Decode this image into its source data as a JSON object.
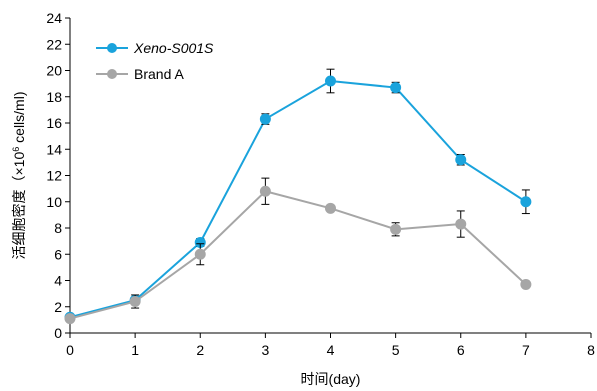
{
  "chart_data": {
    "type": "line",
    "xlabel": "时间(day)",
    "ylabel_prefix": "活细胞密度（×10",
    "ylabel_sup": "6",
    "ylabel_suffix": " cells/ml)",
    "xlim": [
      0,
      8
    ],
    "ylim": [
      0,
      24
    ],
    "x_ticks": [
      0,
      1,
      2,
      3,
      4,
      5,
      6,
      7,
      8
    ],
    "y_ticks": [
      0,
      2,
      4,
      6,
      8,
      10,
      12,
      14,
      16,
      18,
      20,
      22,
      24
    ],
    "grid": false,
    "legend_position": "top-left",
    "series": [
      {
        "name": "Xeno-S001S",
        "color": "#1aa3dc",
        "italic": true,
        "x": [
          0,
          1,
          2,
          3,
          4,
          5,
          6,
          7
        ],
        "y": [
          1.2,
          2.5,
          6.9,
          16.3,
          19.2,
          18.7,
          13.2,
          10.0
        ],
        "err": [
          0.1,
          0.2,
          0.3,
          0.4,
          0.9,
          0.4,
          0.4,
          0.9
        ]
      },
      {
        "name": "Brand A",
        "color": "#a6a6a6",
        "italic": false,
        "x": [
          0,
          1,
          2,
          3,
          4,
          5,
          6,
          7
        ],
        "y": [
          1.1,
          2.4,
          6.0,
          10.8,
          9.5,
          7.9,
          8.3,
          3.7
        ],
        "err": [
          0.1,
          0.5,
          0.8,
          1.0,
          0.2,
          0.5,
          1.0,
          0.1
        ]
      }
    ]
  }
}
